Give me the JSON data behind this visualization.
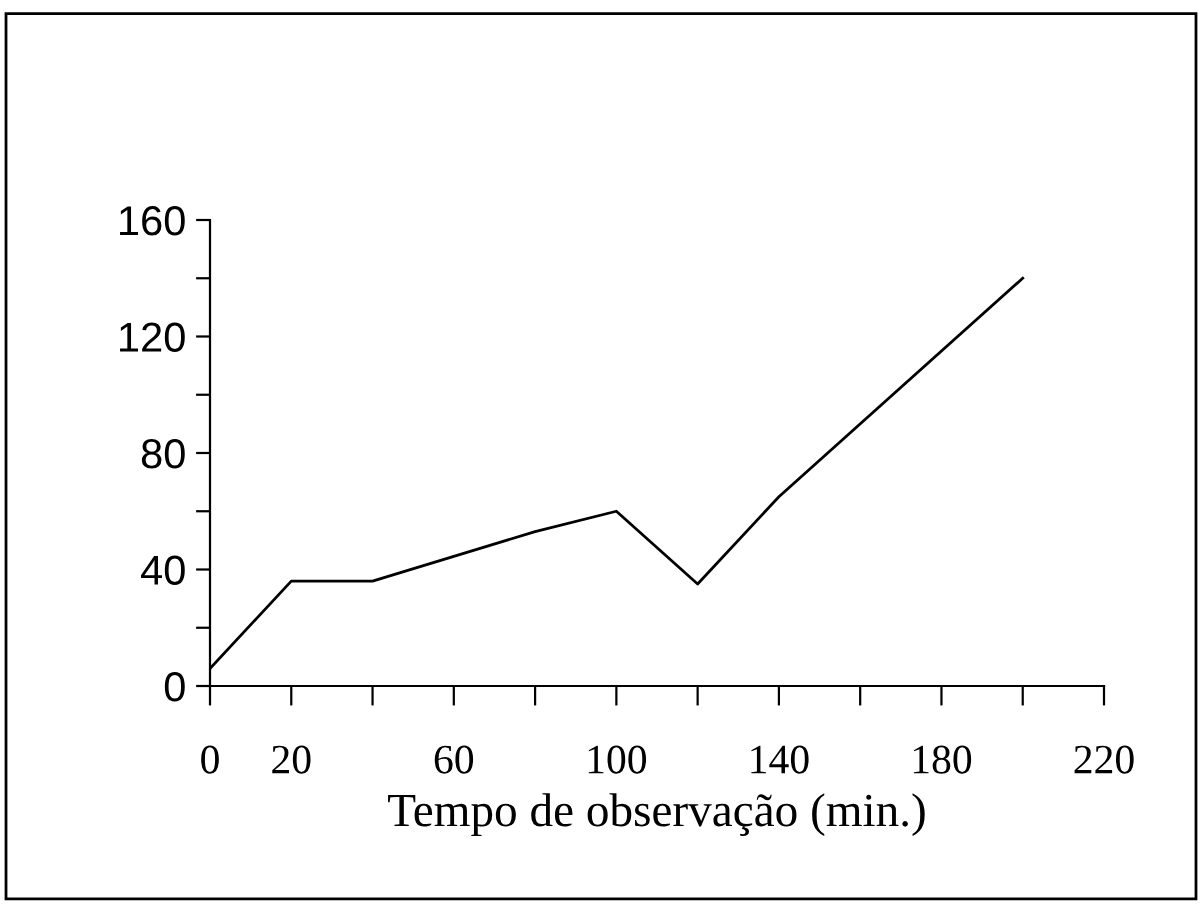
{
  "chart_data": {
    "type": "line",
    "xlabel": "Tempo de observação (min.)",
    "x": [
      0,
      20,
      40,
      80,
      100,
      120,
      140,
      200
    ],
    "series": [
      {
        "color": "#000000",
        "values": [
          6,
          36,
          36,
          53,
          60,
          35,
          65,
          140
        ]
      }
    ],
    "xlim": [
      0,
      220
    ],
    "ylim": [
      0,
      160
    ],
    "xticks": [
      0,
      20,
      {
        "value": 40,
        "label": null
      },
      60,
      {
        "value": 80,
        "label": null
      },
      100,
      {
        "value": 120,
        "label": null
      },
      140,
      {
        "value": 160,
        "label": null
      },
      180,
      {
        "value": 200,
        "label": null
      },
      220
    ],
    "yticks": [
      0,
      {
        "value": 20,
        "label": null
      },
      40,
      {
        "value": 60,
        "label": null
      },
      80,
      {
        "value": 100,
        "label": null
      },
      120,
      {
        "value": 140,
        "label": null
      },
      160
    ],
    "grid": false,
    "legend": false,
    "marker": "none",
    "line_style": "solid"
  }
}
